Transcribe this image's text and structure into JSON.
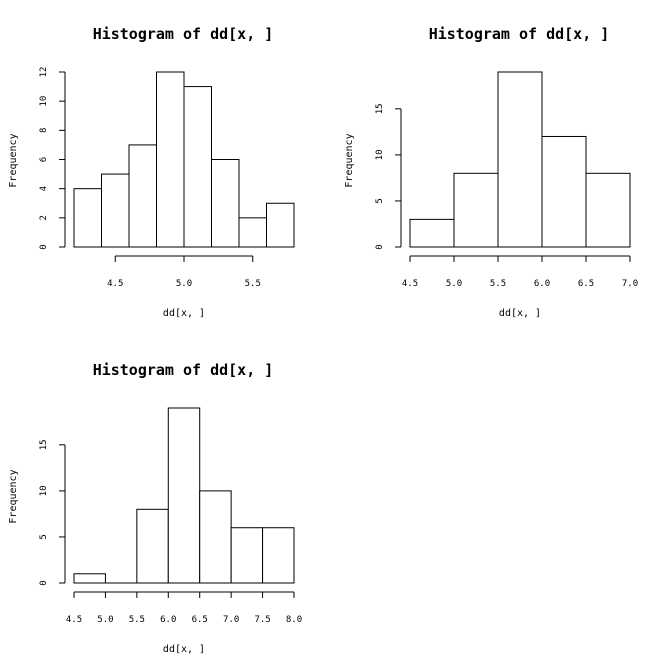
{
  "chart_data": [
    {
      "type": "bar",
      "title": "Histogram of dd[x, ]",
      "xlabel": "dd[x, ]",
      "ylabel": "Frequency",
      "bin_edges": [
        4.2,
        4.4,
        4.6,
        4.8,
        5.0,
        5.2,
        5.4,
        5.6,
        5.8
      ],
      "values": [
        4,
        5,
        7,
        12,
        11,
        6,
        2,
        3
      ],
      "xticks": [
        4.5,
        5.0,
        5.5
      ],
      "xtick_labels": [
        "4.5",
        "5.0",
        "5.5"
      ],
      "yticks": [
        0,
        2,
        4,
        6,
        8,
        10,
        12
      ],
      "xlim": [
        4.2,
        5.8
      ],
      "ylim": [
        0,
        12
      ]
    },
    {
      "type": "bar",
      "title": "Histogram of dd[x, ]",
      "xlabel": "dd[x, ]",
      "ylabel": "Frequency",
      "bin_edges": [
        4.5,
        5.0,
        5.5,
        6.0,
        6.5,
        7.0
      ],
      "values": [
        3,
        8,
        19,
        12,
        8
      ],
      "xticks": [
        4.5,
        5.0,
        5.5,
        6.0,
        6.5,
        7.0
      ],
      "xtick_labels": [
        "4.5",
        "5.0",
        "5.5",
        "6.0",
        "6.5",
        "7.0"
      ],
      "yticks": [
        0,
        5,
        10,
        15
      ],
      "xlim": [
        4.5,
        7.0
      ],
      "ylim": [
        0,
        19
      ]
    },
    {
      "type": "bar",
      "title": "Histogram of dd[x, ]",
      "xlabel": "dd[x, ]",
      "ylabel": "Frequency",
      "bin_edges": [
        4.5,
        5.0,
        5.5,
        6.0,
        6.5,
        7.0,
        7.5,
        8.0
      ],
      "values": [
        1,
        0,
        8,
        19,
        10,
        6,
        6
      ],
      "xticks": [
        4.5,
        5.0,
        5.5,
        6.0,
        6.5,
        7.0,
        7.5,
        8.0
      ],
      "xtick_labels": [
        "4.5",
        "5.0",
        "5.5",
        "6.0",
        "6.5",
        "7.0",
        "7.5",
        "8.0"
      ],
      "yticks": [
        0,
        5,
        10,
        15
      ],
      "xlim": [
        4.5,
        8.0
      ],
      "ylim": [
        0,
        19
      ]
    }
  ]
}
